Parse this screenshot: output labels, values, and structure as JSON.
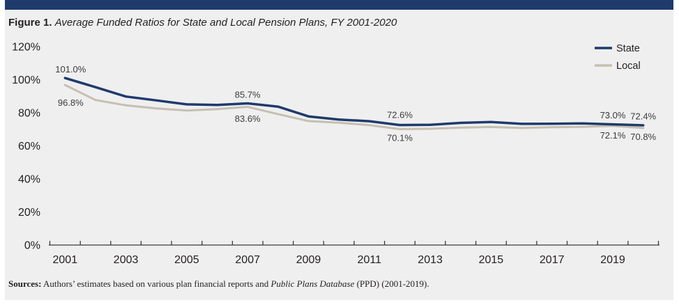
{
  "colors": {
    "header_bar": "#1f3a6d",
    "panel_background": "#efefef"
  },
  "chart_data": {
    "type": "line",
    "figure_label": "Figure 1.",
    "title": "Average Funded Ratios for State and Local Pension Plans, FY 2001-2020",
    "x": [
      2001,
      2002,
      2003,
      2004,
      2005,
      2006,
      2007,
      2008,
      2009,
      2010,
      2011,
      2012,
      2013,
      2014,
      2015,
      2016,
      2017,
      2018,
      2019,
      2020
    ],
    "x_tick_labels": [
      "2001",
      "2003",
      "2005",
      "2007",
      "2009",
      "2011",
      "2013",
      "2015",
      "2017",
      "2019"
    ],
    "y_ticks": [
      0,
      20,
      40,
      60,
      80,
      100,
      120
    ],
    "y_tick_labels": [
      "0%",
      "20%",
      "40%",
      "60%",
      "80%",
      "100%",
      "120%"
    ],
    "ylim": [
      0,
      120
    ],
    "grid": false,
    "legend": {
      "position": "top-right"
    },
    "series": [
      {
        "name": "State",
        "color": "#1f3a6d",
        "values": [
          101.0,
          95.5,
          89.8,
          87.5,
          85.1,
          84.7,
          85.7,
          83.7,
          77.8,
          75.9,
          74.9,
          72.6,
          72.7,
          73.9,
          74.4,
          73.3,
          73.4,
          73.6,
          73.0,
          72.4
        ],
        "data_labels": [
          {
            "x": 2001,
            "text": "101.0%"
          },
          {
            "x": 2007,
            "text": "85.7%"
          },
          {
            "x": 2012,
            "text": "72.6%"
          },
          {
            "x": 2019,
            "text": "73.0%"
          },
          {
            "x": 2020,
            "text": "72.4%"
          }
        ]
      },
      {
        "name": "Local",
        "color": "#c6bfb1",
        "values": [
          96.8,
          87.7,
          84.5,
          82.6,
          81.4,
          82.2,
          83.6,
          79.2,
          75.0,
          74.0,
          72.5,
          70.1,
          70.3,
          71.0,
          71.4,
          70.8,
          71.3,
          71.5,
          72.1,
          70.8
        ],
        "data_labels": [
          {
            "x": 2001,
            "text": "96.8%"
          },
          {
            "x": 2007,
            "text": "83.6%"
          },
          {
            "x": 2012,
            "text": "70.1%"
          },
          {
            "x": 2019,
            "text": "72.1%"
          },
          {
            "x": 2020,
            "text": "70.8%"
          }
        ]
      }
    ]
  },
  "sources": {
    "label": "Sources:",
    "text": "Authors’ estimates based on various plan financial reports and",
    "italic_text": "Public Plans Database",
    "text_end": "(PPD) (2001-2019)."
  }
}
